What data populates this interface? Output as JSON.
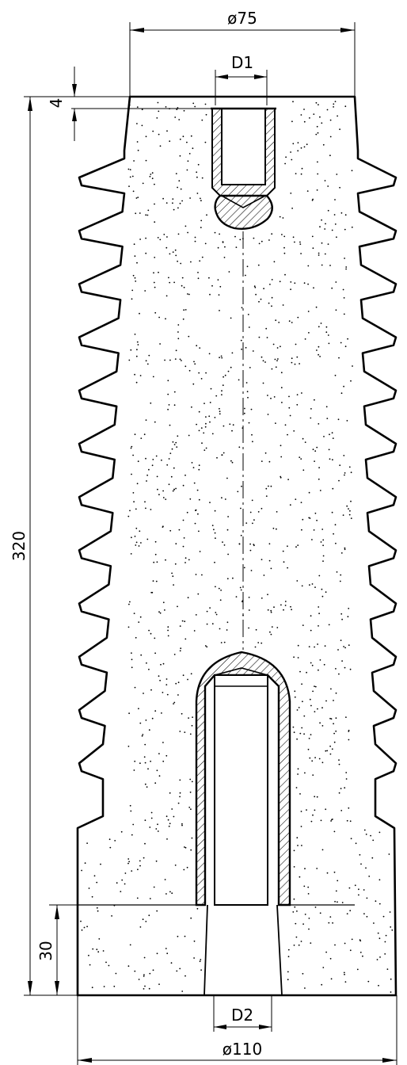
{
  "drawing": {
    "dimensions": {
      "top_diameter": "ø75",
      "top_hole": "D1",
      "top_offset": "4",
      "total_height": "320",
      "base_height": "30",
      "bottom_hole": "D2",
      "base_diameter": "ø110"
    },
    "shed_count": 12,
    "colors": {
      "line": "#000000",
      "background": "#ffffff"
    }
  }
}
